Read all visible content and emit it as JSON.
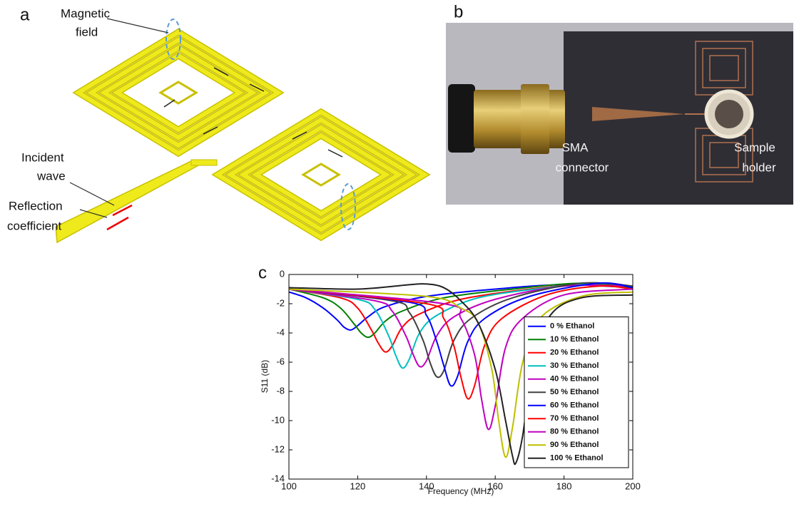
{
  "panel_a": {
    "label": "a",
    "annotations": [
      [
        "Magnetic",
        "field"
      ],
      [
        "Incident",
        "wave"
      ],
      [
        "Reflection",
        "coefficient"
      ]
    ]
  },
  "panel_b": {
    "label": "b",
    "annotations": [
      [
        "SMA",
        "connector"
      ],
      [
        "Sample",
        "holder"
      ]
    ]
  },
  "chart_data": {
    "type": "line",
    "label": "c",
    "xlabel": "Frequency (MHz)",
    "ylabel": "S11 (dB)",
    "xlim": [
      100,
      200
    ],
    "ylim": [
      -14,
      0
    ],
    "xticks": [
      100,
      120,
      140,
      160,
      180,
      200
    ],
    "yticks": [
      -14,
      -12,
      -10,
      -8,
      -6,
      -4,
      -2,
      0
    ],
    "legend": "lower right",
    "series": [
      {
        "name": "0 % Ethanol",
        "color": "#0000ff",
        "x": [
          100,
          105,
          110,
          114,
          116,
          118,
          120,
          123,
          128,
          140,
          160,
          180,
          200
        ],
        "values": [
          -1.2,
          -1.6,
          -2.3,
          -3.1,
          -3.6,
          -3.8,
          -3.5,
          -2.9,
          -2.2,
          -1.5,
          -1.0,
          -0.7,
          -0.9
        ]
      },
      {
        "name": "10 % Ethanol",
        "color": "#008000",
        "x": [
          100,
          110,
          115,
          119,
          121,
          123,
          125,
          128,
          133,
          145,
          165,
          185,
          200
        ],
        "values": [
          -1.0,
          -1.6,
          -2.3,
          -3.4,
          -4.0,
          -4.3,
          -4.0,
          -3.2,
          -2.5,
          -1.6,
          -1.0,
          -0.6,
          -0.9
        ]
      },
      {
        "name": "20 % Ethanol",
        "color": "#ff0000",
        "x": [
          100,
          115,
          120,
          124,
          126,
          128,
          130,
          133,
          138,
          150,
          170,
          190,
          200
        ],
        "values": [
          -1.0,
          -1.6,
          -2.3,
          -3.8,
          -4.7,
          -5.3,
          -4.9,
          -3.6,
          -2.7,
          -1.7,
          -1.0,
          -0.6,
          -0.8
        ]
      },
      {
        "name": "30 % Ethanol",
        "color": "#00bfbf",
        "x": [
          100,
          120,
          125,
          129,
          131,
          133,
          135,
          138,
          143,
          155,
          175,
          190,
          200
        ],
        "values": [
          -1.0,
          -1.7,
          -2.4,
          -4.2,
          -5.5,
          -6.4,
          -5.8,
          -4.0,
          -2.8,
          -1.6,
          -0.9,
          -0.6,
          -0.8
        ]
      },
      {
        "name": "40 % Ethanol",
        "color": "#bf00bf",
        "x": [
          100,
          125,
          130,
          134,
          136,
          138,
          140,
          143,
          148,
          160,
          180,
          200
        ],
        "values": [
          -1.0,
          -1.8,
          -2.5,
          -4.2,
          -5.4,
          -6.3,
          -5.9,
          -4.2,
          -2.9,
          -1.7,
          -0.8,
          -0.8
        ]
      },
      {
        "name": "50 % Ethanol",
        "color": "#404040",
        "x": [
          100,
          130,
          135,
          139,
          141,
          143,
          145,
          148,
          153,
          165,
          185,
          200
        ],
        "values": [
          -1.0,
          -1.8,
          -2.6,
          -4.5,
          -6.0,
          -7.0,
          -6.6,
          -4.5,
          -3.0,
          -1.6,
          -0.6,
          -0.8
        ]
      },
      {
        "name": "60 % Ethanol",
        "color": "#0000ff",
        "x": [
          100,
          135,
          140,
          143,
          145,
          147,
          149,
          152,
          157,
          170,
          190,
          200
        ],
        "values": [
          -1.0,
          -1.9,
          -2.8,
          -4.6,
          -6.2,
          -7.6,
          -7.0,
          -4.6,
          -3.0,
          -1.5,
          -0.6,
          -0.9
        ]
      },
      {
        "name": "70 % Ethanol",
        "color": "#ff0000",
        "x": [
          100,
          140,
          145,
          148,
          150,
          152,
          154,
          157,
          162,
          175,
          190,
          200
        ],
        "values": [
          -1.0,
          -2.0,
          -3.0,
          -4.9,
          -7.0,
          -8.5,
          -7.6,
          -4.8,
          -3.0,
          -1.4,
          -0.8,
          -1.0
        ]
      },
      {
        "name": "80 % Ethanol",
        "color": "#bf00bf",
        "x": [
          100,
          145,
          150,
          154,
          156,
          158,
          160,
          163,
          168,
          180,
          200
        ],
        "values": [
          -1.0,
          -2.0,
          -3.0,
          -5.5,
          -8.5,
          -10.6,
          -9.0,
          -5.0,
          -3.0,
          -1.4,
          -1.0
        ]
      },
      {
        "name": "90 % Ethanol",
        "color": "#bfbf00",
        "x": [
          100,
          140,
          150,
          155,
          159,
          161,
          163,
          165,
          168,
          173,
          185,
          200
        ],
        "values": [
          -1.0,
          -1.5,
          -2.3,
          -3.3,
          -6.5,
          -10.0,
          -12.5,
          -10.5,
          -6.0,
          -3.0,
          -1.5,
          -1.2
        ]
      },
      {
        "name": "100 % Ethanol",
        "color": "#222222",
        "x": [
          100,
          120,
          135,
          140,
          145,
          150,
          155,
          160,
          163,
          165,
          166,
          168,
          171,
          176,
          185,
          200
        ],
        "values": [
          -0.9,
          -1.0,
          -0.7,
          -0.65,
          -0.9,
          -1.8,
          -3.3,
          -6.5,
          -10.0,
          -12.4,
          -12.9,
          -11.0,
          -6.0,
          -2.8,
          -1.6,
          -1.4
        ]
      }
    ]
  }
}
